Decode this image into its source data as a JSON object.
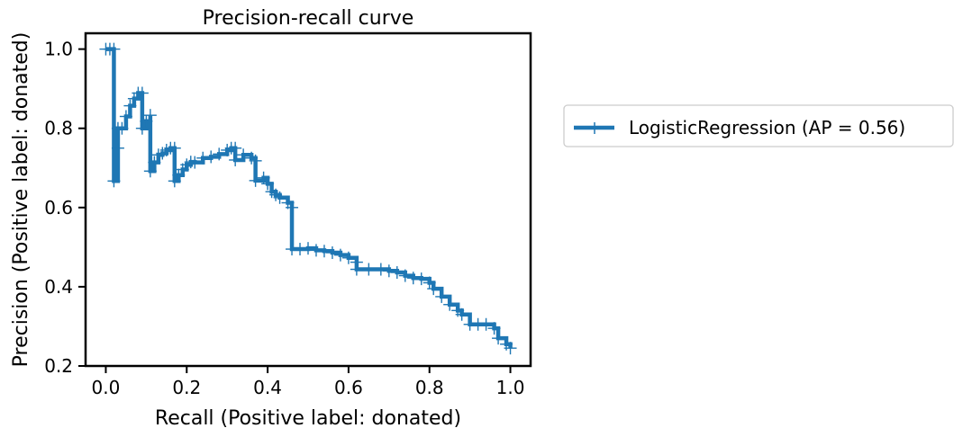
{
  "chart_data": {
    "type": "line",
    "title": "Precision-recall curve",
    "xlabel": "Recall (Positive label: donated)",
    "ylabel": "Precision (Positive label: donated)",
    "xlim": [
      -0.05,
      1.05
    ],
    "ylim": [
      0.2,
      1.04
    ],
    "xticks": [
      0.0,
      0.2,
      0.4,
      0.6,
      0.8,
      1.0
    ],
    "xtick_labels": [
      "0.0",
      "0.2",
      "0.4",
      "0.6",
      "0.8",
      "1.0"
    ],
    "yticks": [
      0.2,
      0.4,
      0.6,
      0.8,
      1.0
    ],
    "ytick_labels": [
      "0.2",
      "0.4",
      "0.6",
      "0.8",
      "1.0"
    ],
    "grid": false,
    "legend_position": "outside-right",
    "colors": {
      "series": "#1f77b4"
    },
    "marker": "plus",
    "series": [
      {
        "name": "LogisticRegression (AP = 0.56)",
        "drawstyle": "steps-post",
        "points": [
          [
            0.0,
            1.0
          ],
          [
            0.01,
            1.0
          ],
          [
            0.02,
            1.0
          ],
          [
            0.02,
            0.667
          ],
          [
            0.03,
            0.75
          ],
          [
            0.03,
            0.8
          ],
          [
            0.04,
            0.8
          ],
          [
            0.05,
            0.83
          ],
          [
            0.06,
            0.857
          ],
          [
            0.07,
            0.875
          ],
          [
            0.08,
            0.889
          ],
          [
            0.09,
            0.889
          ],
          [
            0.09,
            0.8
          ],
          [
            0.1,
            0.818
          ],
          [
            0.11,
            0.833
          ],
          [
            0.11,
            0.692
          ],
          [
            0.12,
            0.714
          ],
          [
            0.13,
            0.733
          ],
          [
            0.14,
            0.737
          ],
          [
            0.15,
            0.745
          ],
          [
            0.16,
            0.75
          ],
          [
            0.17,
            0.75
          ],
          [
            0.17,
            0.667
          ],
          [
            0.18,
            0.682
          ],
          [
            0.19,
            0.696
          ],
          [
            0.2,
            0.708
          ],
          [
            0.21,
            0.715
          ],
          [
            0.22,
            0.714
          ],
          [
            0.24,
            0.725
          ],
          [
            0.26,
            0.728
          ],
          [
            0.28,
            0.735
          ],
          [
            0.3,
            0.745
          ],
          [
            0.31,
            0.75
          ],
          [
            0.32,
            0.75
          ],
          [
            0.32,
            0.72
          ],
          [
            0.34,
            0.733
          ],
          [
            0.36,
            0.725
          ],
          [
            0.37,
            0.718
          ],
          [
            0.37,
            0.668
          ],
          [
            0.39,
            0.675
          ],
          [
            0.4,
            0.66
          ],
          [
            0.41,
            0.64
          ],
          [
            0.42,
            0.632
          ],
          [
            0.43,
            0.625
          ],
          [
            0.45,
            0.612
          ],
          [
            0.46,
            0.6
          ],
          [
            0.46,
            0.495
          ],
          [
            0.48,
            0.495
          ],
          [
            0.5,
            0.497
          ],
          [
            0.52,
            0.492
          ],
          [
            0.54,
            0.49
          ],
          [
            0.56,
            0.486
          ],
          [
            0.58,
            0.48
          ],
          [
            0.6,
            0.473
          ],
          [
            0.62,
            0.462
          ],
          [
            0.62,
            0.444
          ],
          [
            0.65,
            0.444
          ],
          [
            0.68,
            0.444
          ],
          [
            0.7,
            0.44
          ],
          [
            0.72,
            0.436
          ],
          [
            0.74,
            0.428
          ],
          [
            0.76,
            0.422
          ],
          [
            0.78,
            0.42
          ],
          [
            0.8,
            0.41
          ],
          [
            0.81,
            0.395
          ],
          [
            0.83,
            0.375
          ],
          [
            0.85,
            0.355
          ],
          [
            0.87,
            0.34
          ],
          [
            0.88,
            0.33
          ],
          [
            0.9,
            0.305
          ],
          [
            0.92,
            0.305
          ],
          [
            0.94,
            0.305
          ],
          [
            0.96,
            0.295
          ],
          [
            0.97,
            0.27
          ],
          [
            0.99,
            0.255
          ],
          [
            1.0,
            0.245
          ]
        ]
      }
    ]
  }
}
